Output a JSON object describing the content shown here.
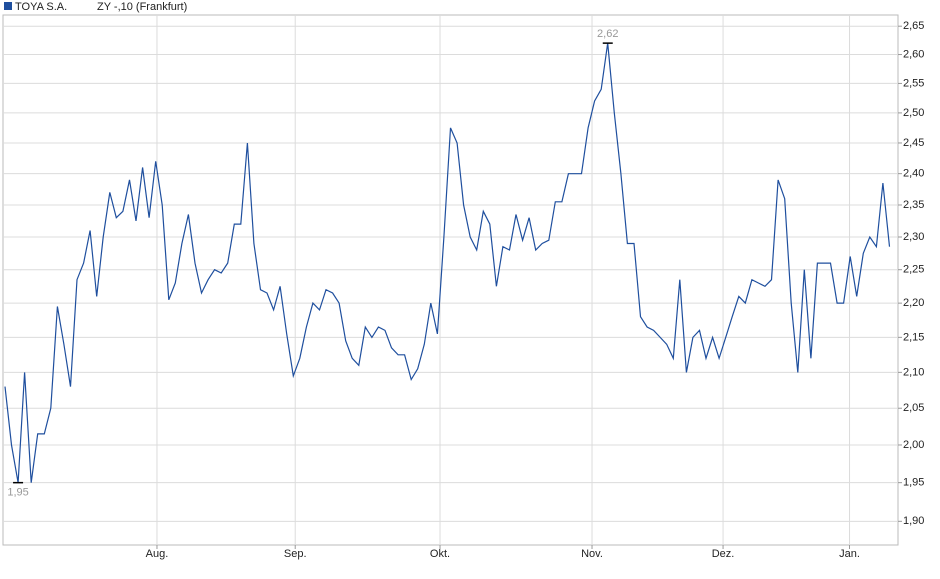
{
  "chart_data": {
    "type": "line",
    "subtitle": "ZY -,10 (Frankfurt)",
    "x": [
      0,
      1,
      2,
      3,
      4,
      5,
      6,
      7,
      8,
      9,
      10,
      11,
      12,
      13,
      14,
      15,
      16,
      17,
      18,
      19,
      20,
      21,
      22,
      23,
      24,
      25,
      26,
      27,
      28,
      29,
      30,
      31,
      32,
      33,
      34,
      35,
      36,
      37,
      38,
      39,
      40,
      41,
      42,
      43,
      44,
      45,
      46,
      47,
      48,
      49,
      50,
      51,
      52,
      53,
      54,
      55,
      56,
      57,
      58,
      59,
      60,
      61,
      62,
      63,
      64,
      65,
      66,
      67,
      68,
      69,
      70,
      71,
      72,
      73,
      74,
      75,
      76,
      77,
      78,
      79,
      80,
      81,
      82,
      83,
      84,
      85,
      86,
      87,
      88,
      89,
      90,
      91,
      92,
      93,
      94,
      95,
      96,
      97,
      98,
      99,
      100,
      101,
      102,
      103,
      104,
      105,
      106,
      107,
      108,
      109,
      110,
      111,
      112,
      113,
      114,
      115,
      116,
      117,
      118,
      119,
      120,
      121,
      122,
      123,
      124,
      125,
      126,
      127,
      128,
      129,
      130,
      131,
      132,
      133,
      134,
      135
    ],
    "series": [
      {
        "name": "TOYA S.A.",
        "color": "#1f4f9e",
        "values": [
          2.08,
          2.0,
          1.95,
          2.1,
          1.95,
          2.015,
          2.015,
          2.05,
          2.195,
          2.14,
          2.08,
          2.235,
          2.26,
          2.31,
          2.21,
          2.3,
          2.37,
          2.33,
          2.34,
          2.39,
          2.325,
          2.41,
          2.33,
          2.42,
          2.35,
          2.205,
          2.23,
          2.29,
          2.335,
          2.26,
          2.215,
          2.235,
          2.25,
          2.245,
          2.26,
          2.32,
          2.32,
          2.45,
          2.29,
          2.22,
          2.215,
          2.19,
          2.225,
          2.155,
          2.095,
          2.12,
          2.165,
          2.2,
          2.19,
          2.22,
          2.215,
          2.2,
          2.145,
          2.12,
          2.11,
          2.165,
          2.15,
          2.165,
          2.16,
          2.135,
          2.125,
          2.125,
          2.09,
          2.105,
          2.14,
          2.2,
          2.155,
          2.3,
          2.475,
          2.45,
          2.35,
          2.3,
          2.28,
          2.34,
          2.32,
          2.225,
          2.285,
          2.28,
          2.335,
          2.295,
          2.33,
          2.28,
          2.29,
          2.295,
          2.355,
          2.355,
          2.4,
          2.4,
          2.4,
          2.475,
          2.52,
          2.54,
          2.62,
          2.5,
          2.4,
          2.29,
          2.29,
          2.18,
          2.165,
          2.16,
          2.15,
          2.14,
          2.12,
          2.235,
          2.1,
          2.15,
          2.16,
          2.12,
          2.15,
          2.12,
          2.15,
          2.18,
          2.21,
          2.2,
          2.235,
          2.23,
          2.225,
          2.235,
          2.39,
          2.36,
          2.2,
          2.1,
          2.25,
          2.12,
          2.26,
          2.26,
          2.26,
          2.2,
          2.2,
          2.27,
          2.21,
          2.275,
          2.3,
          2.285,
          2.385,
          2.285
        ]
      }
    ],
    "annotations": [
      {
        "x": 2,
        "y": 1.95,
        "label": "1,95"
      },
      {
        "x": 92,
        "y": 2.62,
        "label": "2,62"
      }
    ],
    "xlim": [
      -0.3,
      136.3
    ],
    "xticks": [
      {
        "value": 23.2,
        "label": "Aug."
      },
      {
        "value": 44.3,
        "label": "Sep."
      },
      {
        "value": 66.4,
        "label": "Okt."
      },
      {
        "value": 89.6,
        "label": "Nov."
      },
      {
        "value": 109.6,
        "label": "Dez."
      },
      {
        "value": 128.9,
        "label": "Jan."
      }
    ],
    "ylim": [
      1.87,
      2.67
    ],
    "log_scale": true,
    "grid": true,
    "yticks": [
      {
        "value": 1.9,
        "label": "1,90"
      },
      {
        "value": 1.95,
        "label": "1,95"
      },
      {
        "value": 2.0,
        "label": "2,00"
      },
      {
        "value": 2.05,
        "label": "2,05"
      },
      {
        "value": 2.1,
        "label": "2,10"
      },
      {
        "value": 2.15,
        "label": "2,15"
      },
      {
        "value": 2.2,
        "label": "2,20"
      },
      {
        "value": 2.25,
        "label": "2,25"
      },
      {
        "value": 2.3,
        "label": "2,30"
      },
      {
        "value": 2.35,
        "label": "2,35"
      },
      {
        "value": 2.4,
        "label": "2,40"
      },
      {
        "value": 2.45,
        "label": "2,45"
      },
      {
        "value": 2.5,
        "label": "2,50"
      },
      {
        "value": 2.55,
        "label": "2,55"
      },
      {
        "value": 2.6,
        "label": "2,60"
      },
      {
        "value": 2.65,
        "label": "2,65"
      }
    ]
  }
}
